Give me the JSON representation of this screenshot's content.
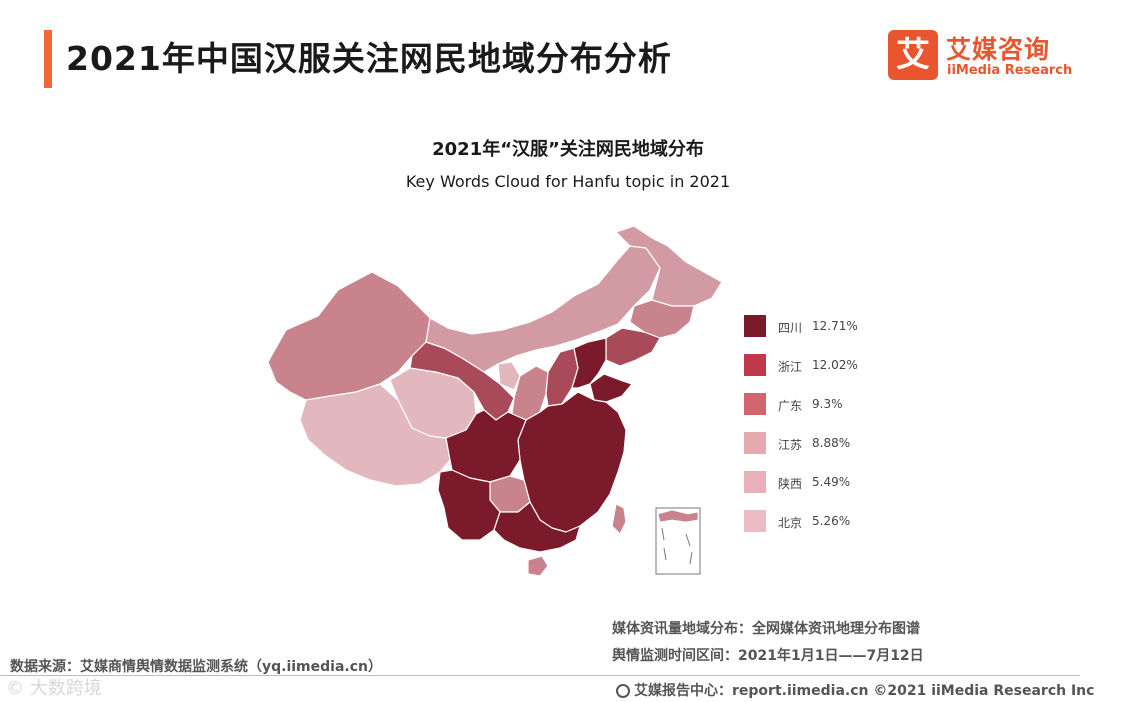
{
  "header": {
    "title": "2021年中国汉服关注网民地域分布分析",
    "logo_icon_char": "艾",
    "logo_cn": "艾媒咨询",
    "logo_en": "iiMedia Research"
  },
  "chart_data": {
    "type": "choropleth",
    "title": "2021年“汉服”关注网民地域分布",
    "subtitle": "Key Words Cloud for Hanfu topic in 2021",
    "legend_placement": "right",
    "series": [
      {
        "name": "四川",
        "value": "12.71%",
        "color": "#7a1a2b"
      },
      {
        "name": "浙江",
        "value": "12.02%",
        "color": "#c0394a"
      },
      {
        "name": "广东",
        "value": "9.3%",
        "color": "#d3656f"
      },
      {
        "name": "江苏",
        "value": "8.88%",
        "color": "#e5a9b0"
      },
      {
        "name": "陕西",
        "value": "5.49%",
        "color": "#e8b0b8"
      },
      {
        "name": "北京",
        "value": "5.26%",
        "color": "#ebbcc3"
      }
    ],
    "colors": {
      "dark": "#7a1a2b",
      "mid": "#a84a5a",
      "medium": "#c8838c",
      "light": "#d29ba3",
      "lighter": "#e2b7bd",
      "border": "#ffffff"
    }
  },
  "meta": {
    "line1": "媒体资讯量地域分布：全网媒体资讯地理分布图谱",
    "line2": "舆情监测时间区间：2021年1月1日——7月12日"
  },
  "source": "数据来源：艾媒商情舆情数据监测系统（yq.iimedia.cn）",
  "watermark": "© 大数跨境",
  "footer": {
    "text": "艾媒报告中心：report.iimedia.cn  ©2021  iiMedia Research  Inc"
  }
}
